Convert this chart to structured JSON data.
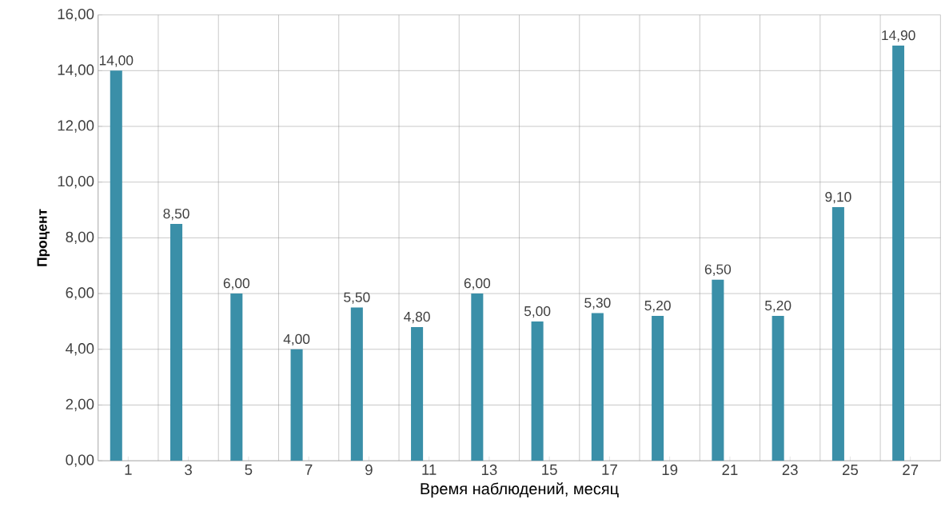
{
  "chart_data": {
    "type": "bar",
    "categories": [
      "1",
      "3",
      "5",
      "7",
      "9",
      "11",
      "13",
      "15",
      "17",
      "19",
      "21",
      "23",
      "25",
      "27"
    ],
    "values": [
      14.0,
      8.5,
      6.0,
      4.0,
      5.5,
      4.8,
      6.0,
      5.0,
      5.3,
      5.2,
      6.5,
      5.2,
      9.1,
      14.9
    ],
    "value_labels": [
      "14,00",
      "8,50",
      "6,00",
      "4,00",
      "5,50",
      "4,80",
      "6,00",
      "5,00",
      "5,30",
      "5,20",
      "6,50",
      "5,20",
      "9,10",
      "14,90"
    ],
    "color": "#3a8fa8",
    "xlabel": "Время наблюдений, месяц",
    "ylabel": "Процент",
    "ylim": [
      0,
      16
    ],
    "yticks": [
      {
        "value": 0,
        "label": "0,00"
      },
      {
        "value": 2,
        "label": "2,00"
      },
      {
        "value": 4,
        "label": "4,00"
      },
      {
        "value": 6,
        "label": "6,00"
      },
      {
        "value": 8,
        "label": "8,00"
      },
      {
        "value": 10,
        "label": "10,00"
      },
      {
        "value": 12,
        "label": "12,00"
      },
      {
        "value": 14,
        "label": "14,00"
      },
      {
        "value": 16,
        "label": "16,00"
      }
    ],
    "grid": true
  }
}
